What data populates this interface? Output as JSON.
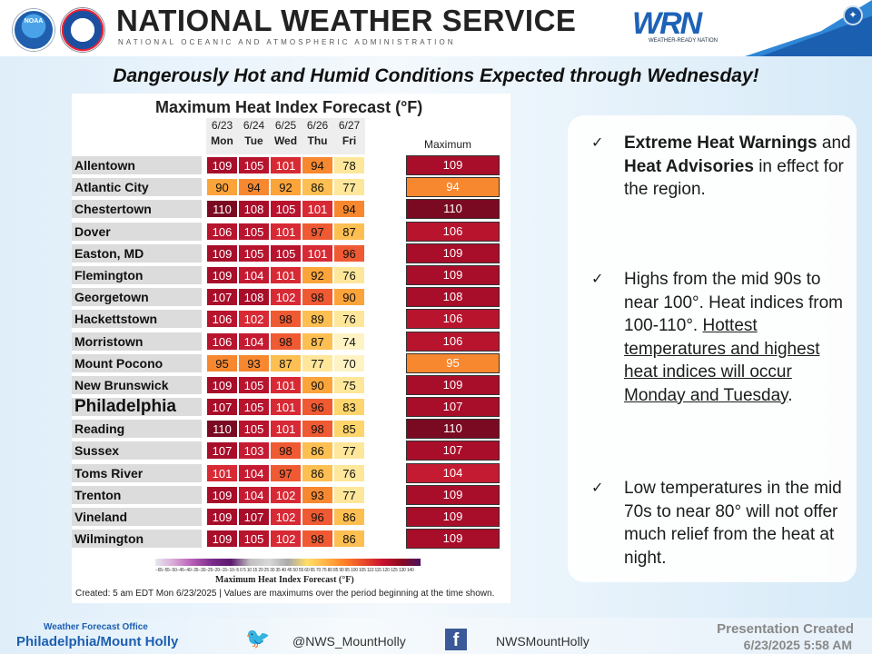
{
  "header": {
    "noaa_logo_text": "NOAA",
    "title": "NATIONAL WEATHER SERVICE",
    "subtitle": "NATIONAL OCEANIC AND ATMOSPHERIC ADMINISTRATION",
    "wrn_logo": "WRN",
    "wrn_tagline": "WEATHER-READY NATION"
  },
  "headline": "Dangerously Hot and Humid Conditions Expected through Wednesday!",
  "chart": {
    "title": "Maximum Heat Index Forecast (°F)",
    "days": [
      {
        "date": "6/23",
        "dow": "Mon"
      },
      {
        "date": "6/24",
        "dow": "Tue"
      },
      {
        "date": "6/25",
        "dow": "Wed"
      },
      {
        "date": "6/26",
        "dow": "Thu"
      },
      {
        "date": "6/27",
        "dow": "Fri"
      }
    ],
    "max_header": "Maximum",
    "rows": [
      {
        "city": "Allentown",
        "values": [
          109,
          105,
          101,
          94,
          78
        ],
        "max": 109
      },
      {
        "city": "Atlantic City",
        "values": [
          90,
          94,
          92,
          86,
          77
        ],
        "max": 94
      },
      {
        "city": "Chestertown",
        "values": [
          110,
          108,
          105,
          101,
          94
        ],
        "max": 110
      },
      {
        "city": "Dover",
        "values": [
          106,
          105,
          101,
          97,
          87
        ],
        "max": 106
      },
      {
        "city": "Easton, MD",
        "values": [
          109,
          105,
          105,
          101,
          96
        ],
        "max": 109
      },
      {
        "city": "Flemington",
        "values": [
          109,
          104,
          101,
          92,
          76
        ],
        "max": 109
      },
      {
        "city": "Georgetown",
        "values": [
          107,
          108,
          102,
          98,
          90
        ],
        "max": 108
      },
      {
        "city": "Hackettstown",
        "values": [
          106,
          102,
          98,
          89,
          76
        ],
        "max": 106
      },
      {
        "city": "Morristown",
        "values": [
          106,
          104,
          98,
          87,
          74
        ],
        "max": 106
      },
      {
        "city": "Mount Pocono",
        "values": [
          95,
          93,
          87,
          77,
          70
        ],
        "max": 95
      },
      {
        "city": "New Brunswick",
        "values": [
          109,
          105,
          101,
          90,
          75
        ],
        "max": 109
      },
      {
        "city": "Philadelphia",
        "values": [
          107,
          105,
          101,
          96,
          83
        ],
        "max": 107,
        "big": true
      },
      {
        "city": "Reading",
        "values": [
          110,
          105,
          101,
          98,
          85
        ],
        "max": 110
      },
      {
        "city": "Sussex",
        "values": [
          107,
          103,
          98,
          86,
          77
        ],
        "max": 107
      },
      {
        "city": "Toms River",
        "values": [
          101,
          104,
          97,
          86,
          76
        ],
        "max": 104
      },
      {
        "city": "Trenton",
        "values": [
          109,
          104,
          102,
          93,
          77
        ],
        "max": 109
      },
      {
        "city": "Vineland",
        "values": [
          109,
          107,
          102,
          96,
          86
        ],
        "max": 109
      },
      {
        "city": "Wilmington",
        "values": [
          109,
          105,
          102,
          98,
          86
        ],
        "max": 109
      }
    ],
    "colorbar_ticks": "−65−55−50−45−40−35−30−25−20−15−10−5 0 5 10 15 20 25 30 35 40 45 50 55 60 65 70 75 80 85 90 95 100 105 110 115 120 125 130 140",
    "colorbar_label": "Maximum Heat Index Forecast (°F)",
    "created": "Created: 5 am EDT Mon 6/23/2025  |  Values are maximums over the period beginning at the time shown."
  },
  "bullets": {
    "check": "✓",
    "b1": {
      "bold1": "Extreme Heat Warnings",
      "mid": " and ",
      "bold2": "Heat Advisories",
      "rest": " in effect for the region."
    },
    "b2": {
      "plain": "Highs from the mid 90s to near 100°. Heat indices from 100-110°. ",
      "underlined": "Hottest temperatures and highest heat indices will occur Monday and Tuesday",
      "end": "."
    },
    "b3": {
      "plain": "Low temperatures in the mid 70s to near 80° will not offer much relief from the heat at night."
    }
  },
  "footer": {
    "wfo_label": "Weather Forecast Office",
    "wfo_name": "Philadelphia/Mount Holly",
    "twitter": "@NWS_MountHolly",
    "facebook": "NWSMountHolly",
    "presentation_label": "Presentation Created",
    "presentation_date": "6/23/2025 5:58 AM"
  }
}
